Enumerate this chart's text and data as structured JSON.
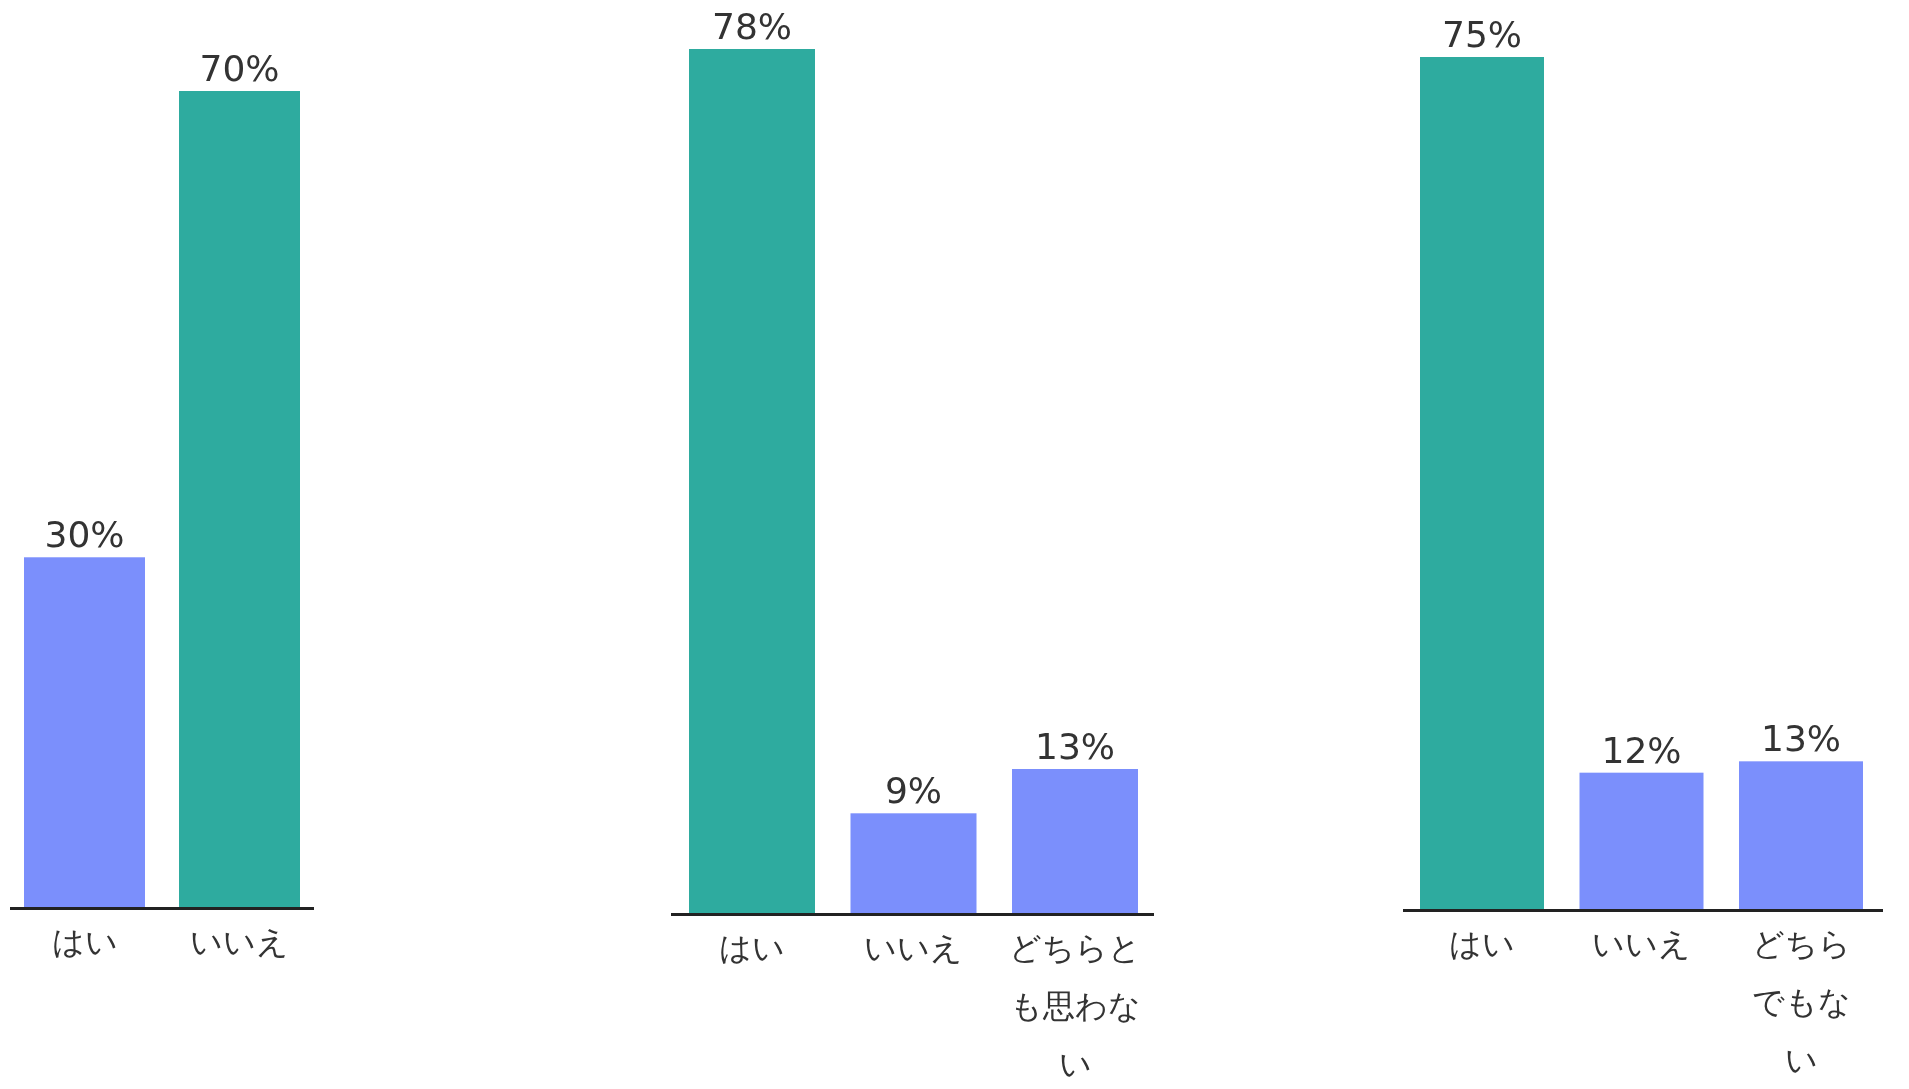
{
  "chart_data": [
    {
      "type": "bar",
      "categories": [
        "はい",
        "いいえ"
      ],
      "values": [
        30,
        70
      ],
      "colors": [
        "#7b8ffc",
        "#2eab9f"
      ],
      "value_labels": [
        "30%",
        "70%"
      ]
    },
    {
      "type": "bar",
      "categories": [
        "はい",
        "いいえ",
        "どちらとも思わない"
      ],
      "values": [
        78,
        9,
        13
      ],
      "colors": [
        "#2eab9f",
        "#7b8ffc",
        "#7b8ffc"
      ],
      "value_labels": [
        "78%",
        "9%",
        "13%"
      ]
    },
    {
      "type": "bar",
      "categories": [
        "はい",
        "いいえ",
        "どちらでもない"
      ],
      "values": [
        75,
        12,
        13
      ],
      "colors": [
        "#2eab9f",
        "#7b8ffc",
        "#7b8ffc"
      ],
      "value_labels": [
        "75%",
        "12%",
        "13%"
      ]
    }
  ]
}
